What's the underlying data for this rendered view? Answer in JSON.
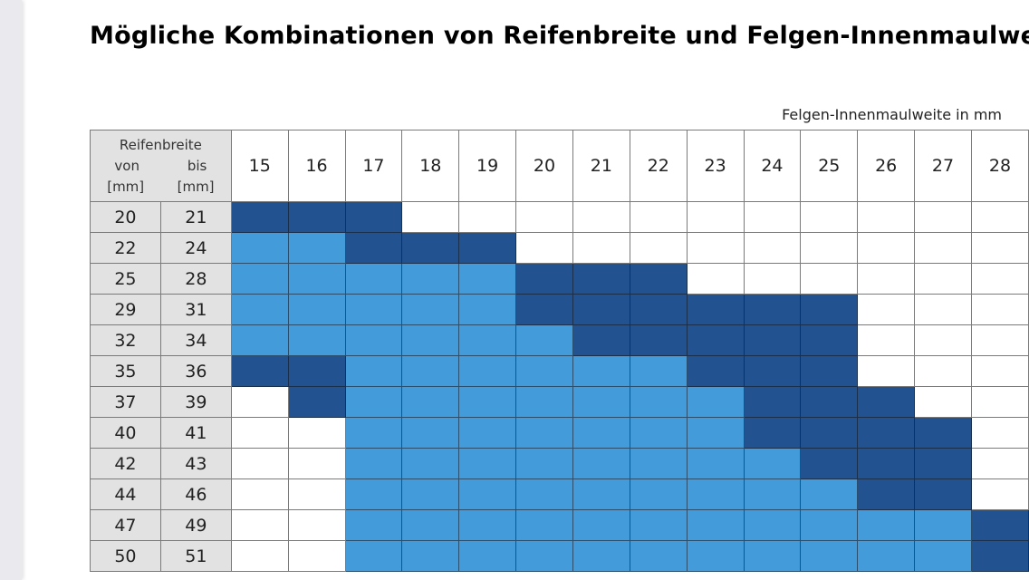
{
  "title": "Mögliche Kombinationen von Reifenbreite und Felgen-Innenmaulweite",
  "column_axis_label": "Felgen-Innenmaulweite in mm",
  "corner": {
    "heading": "Reifenbreite",
    "from": "von",
    "to": "bis",
    "unit_from": "[mm]",
    "unit_to": "[mm]"
  },
  "columns": [
    "15",
    "16",
    "17",
    "18",
    "19",
    "20",
    "21",
    "22",
    "23",
    "24",
    "25",
    "26",
    "27",
    "28"
  ],
  "legend_colors": {
    "D": "#22528f",
    "L": "#449bd9",
    "W": "#ffffff"
  },
  "rows": [
    {
      "from": "20",
      "to": "21",
      "cells": "DDDWWWWWWWWWWW"
    },
    {
      "from": "22",
      "to": "24",
      "cells": "LLDDDWWWWWWWWW"
    },
    {
      "from": "25",
      "to": "28",
      "cells": "LLLLLDDDWWWWWW"
    },
    {
      "from": "29",
      "to": "31",
      "cells": "LLLLLDDDDDDWWW"
    },
    {
      "from": "32",
      "to": "34",
      "cells": "LLLLLLDDDDDWWW"
    },
    {
      "from": "35",
      "to": "36",
      "cells": "DDLLLLLLDDDWWW"
    },
    {
      "from": "37",
      "to": "39",
      "cells": "WDLLLLLLLDDDWW"
    },
    {
      "from": "40",
      "to": "41",
      "cells": "WWLLLLLLLDDDDW"
    },
    {
      "from": "42",
      "to": "43",
      "cells": "WWLLLLLLLLDDDW"
    },
    {
      "from": "44",
      "to": "46",
      "cells": "WWLLLLLLLLLDDW"
    },
    {
      "from": "47",
      "to": "49",
      "cells": "WWLLLLLLLLLLLD"
    },
    {
      "from": "50",
      "to": "51",
      "cells": "WWLLLLLLLLLLLD"
    }
  ]
}
